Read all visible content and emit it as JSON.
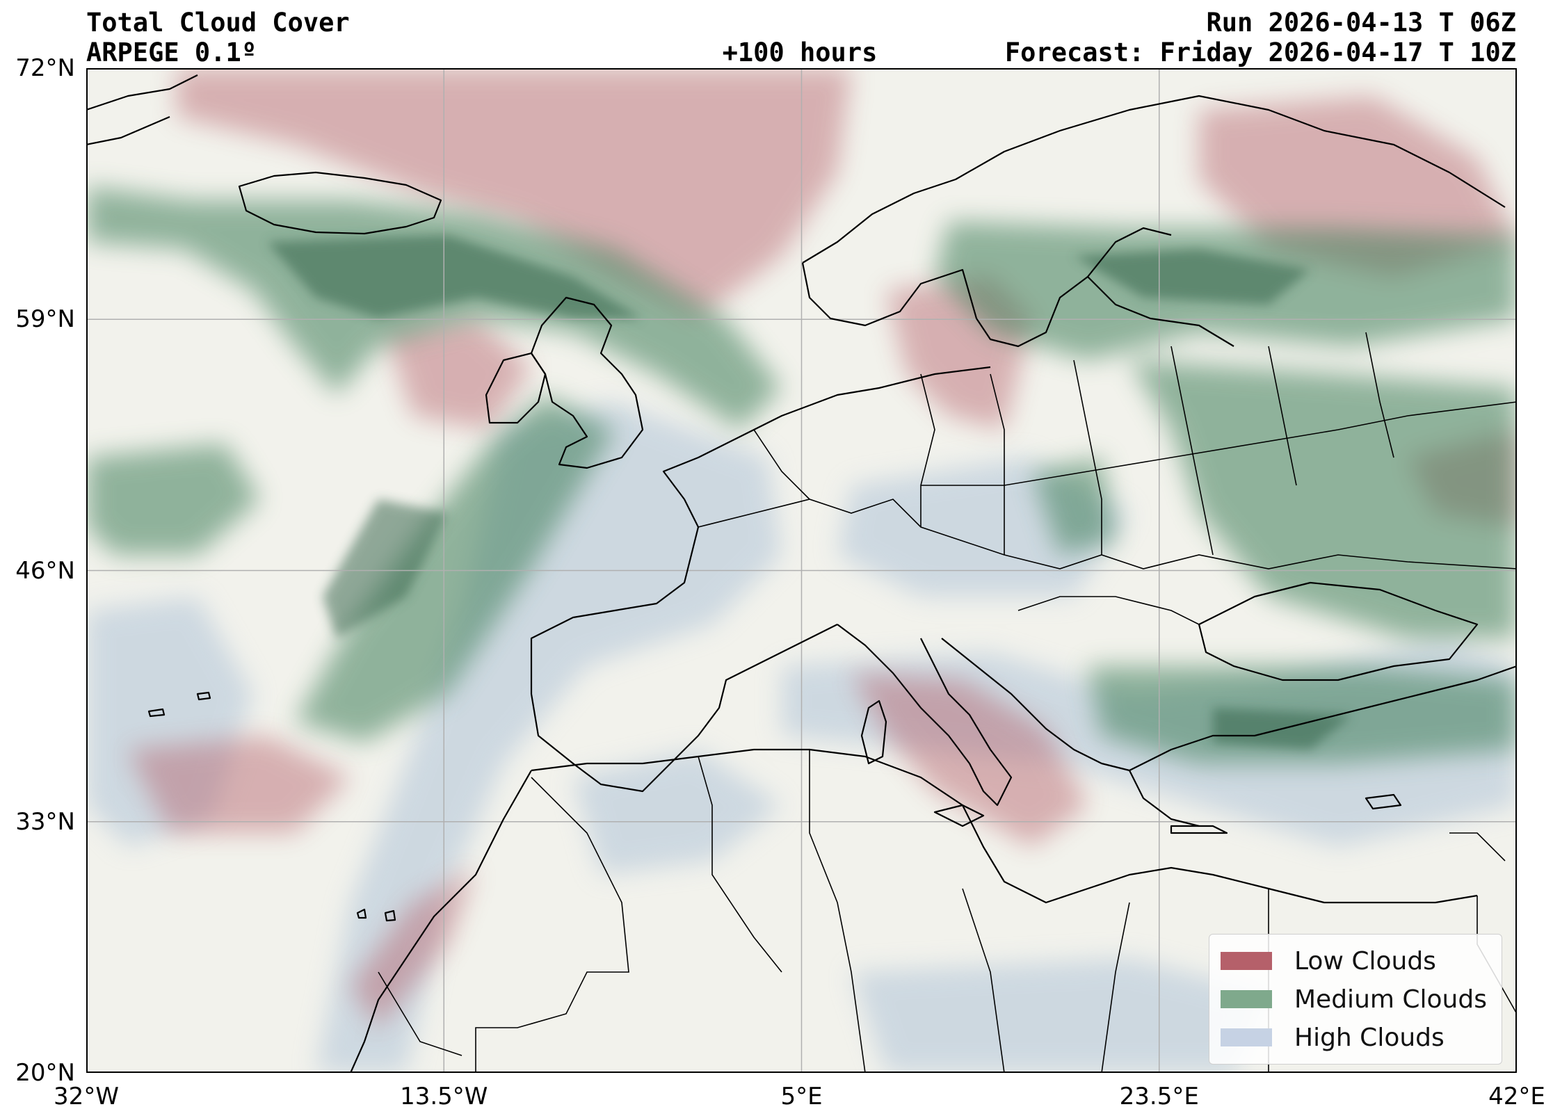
{
  "header": {
    "title": "Total Cloud Cover",
    "model": "ARPEGE 0.1º",
    "run": "Run 2026-04-13 T 06Z",
    "lead_time": "+100 hours",
    "forecast": "Forecast: Friday 2026-04-17 T 10Z"
  },
  "map": {
    "extent": {
      "lon_min": -32,
      "lon_max": 42,
      "lat_min": 20,
      "lat_max": 72
    },
    "grid": true,
    "lat_ticks": [
      {
        "value": 72,
        "label": "72°N"
      },
      {
        "value": 59,
        "label": "59°N"
      },
      {
        "value": 46,
        "label": "46°N"
      },
      {
        "value": 33,
        "label": "33°N"
      },
      {
        "value": 20,
        "label": "20°N"
      }
    ],
    "lon_ticks": [
      {
        "value": -32,
        "label": "32°W"
      },
      {
        "value": -13.5,
        "label": "13.5°W"
      },
      {
        "value": 5,
        "label": "5°E"
      },
      {
        "value": 23.5,
        "label": "23.5°E"
      },
      {
        "value": 42,
        "label": "42°E"
      }
    ],
    "colors": {
      "background": "#f2f2ec",
      "low": "#b5606a",
      "medium": "#3f7f5a",
      "high": "#a9bfd6",
      "coast": "#000000",
      "grid": "#b0b0b0"
    }
  },
  "legend": {
    "placement": "lower-right",
    "items": [
      {
        "label": "Low Clouds",
        "color": "#b5606a"
      },
      {
        "label": "Medium Clouds",
        "color": "#7fa98c"
      },
      {
        "label": "High Clouds",
        "color": "#c6d2e4"
      }
    ]
  }
}
